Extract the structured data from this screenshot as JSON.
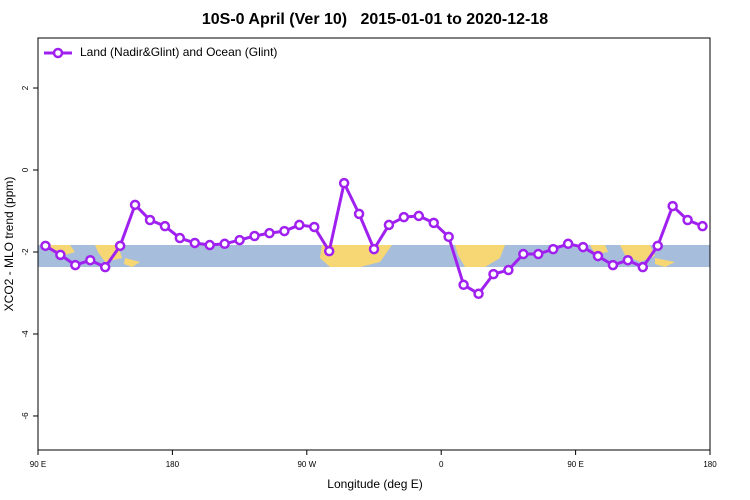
{
  "chart_data": {
    "type": "line",
    "title": "10S-0 April (Ver 10)   2015-01-01 to 2020-12-18",
    "xlabel": "Longitude (deg E)",
    "ylabel": "XCO2 - MLO trend (ppm)",
    "x": [
      95,
      105,
      115,
      125,
      135,
      145,
      155,
      165,
      175,
      185,
      195,
      205,
      215,
      225,
      235,
      245,
      255,
      265,
      275,
      285,
      295,
      305,
      315,
      325,
      335,
      345,
      355,
      365,
      375,
      385,
      395,
      405,
      415,
      425,
      435,
      445,
      455,
      465,
      475,
      485,
      495,
      505,
      515,
      525,
      535
    ],
    "series": [
      {
        "name": "Land (Nadir&Glint) and Ocean (Glint)",
        "color": "#a020f0",
        "values": [
          -1.85,
          -2.07,
          -2.32,
          -2.2,
          -2.37,
          -1.85,
          -0.85,
          -1.22,
          -1.37,
          -1.66,
          -1.78,
          -1.83,
          -1.8,
          -1.71,
          -1.61,
          -1.54,
          -1.49,
          -1.34,
          -1.39,
          -1.98,
          -0.32,
          -1.07,
          -1.93,
          -1.34,
          -1.15,
          -1.12,
          -1.29,
          -1.63,
          -2.8,
          -3.02,
          -2.54,
          -2.44,
          -2.05,
          -2.05,
          -1.93,
          -1.8,
          -1.88,
          -2.1,
          -2.32,
          -2.2,
          -2.37,
          -1.85,
          -0.88,
          -1.22,
          -1.37
        ]
      }
    ],
    "xlim": [
      90,
      540
    ],
    "xticks": [
      {
        "value": 90,
        "label": "90 E"
      },
      {
        "value": 180,
        "label": "180"
      },
      {
        "value": 270,
        "label": "90 W"
      },
      {
        "value": 360,
        "label": "0"
      },
      {
        "value": 450,
        "label": "90 E"
      },
      {
        "value": 540,
        "label": "180"
      }
    ],
    "ylim": [
      -6.83,
      3.22
    ],
    "yticks": [
      -6,
      -4,
      -2,
      0,
      2
    ],
    "legend": "top-left"
  }
}
